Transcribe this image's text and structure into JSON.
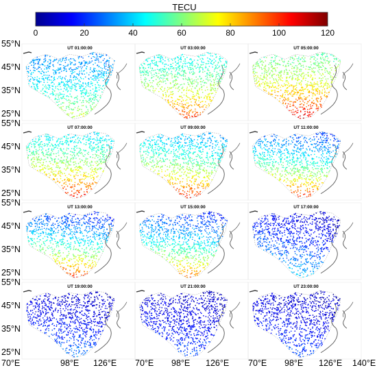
{
  "colorbar": {
    "title": "TECU",
    "min": 0,
    "max": 120,
    "ticks": [
      "0",
      "20",
      "40",
      "60",
      "80",
      "100",
      "120"
    ],
    "colormap": "jet",
    "stops": [
      "#00008f",
      "#0000ff",
      "#007fff",
      "#00ffff",
      "#7fff7f",
      "#ffff00",
      "#ff7f00",
      "#ff0000",
      "#7f0000"
    ]
  },
  "panels": [
    {
      "title": "UT 01:00:00",
      "south_tec": 75,
      "north_tec": 30,
      "west_boost": 0,
      "east_boost": 0
    },
    {
      "title": "UT 03:00:00",
      "south_tec": 105,
      "north_tec": 45,
      "west_boost": 0,
      "east_boost": 0
    },
    {
      "title": "UT 05:00:00",
      "south_tec": 115,
      "north_tec": 55,
      "west_boost": 0,
      "east_boost": 0
    },
    {
      "title": "UT 07:00:00",
      "south_tec": 115,
      "north_tec": 45,
      "west_boost": 0,
      "east_boost": -5
    },
    {
      "title": "UT 09:00:00",
      "south_tec": 115,
      "north_tec": 40,
      "west_boost": 0,
      "east_boost": -10
    },
    {
      "title": "UT 11:00:00",
      "south_tec": 115,
      "north_tec": 30,
      "west_boost": 0,
      "east_boost": -10
    },
    {
      "title": "UT 13:00:00",
      "south_tec": 110,
      "north_tec": 20,
      "west_boost": 5,
      "east_boost": -5
    },
    {
      "title": "UT 15:00:00",
      "south_tec": 100,
      "north_tec": 20,
      "west_boost": 5,
      "east_boost": -5
    },
    {
      "title": "UT 17:00:00",
      "south_tec": 45,
      "north_tec": 12,
      "west_boost": 5,
      "east_boost": -8
    },
    {
      "title": "UT 19:00:00",
      "south_tec": 35,
      "north_tec": 10,
      "west_boost": 0,
      "east_boost": -5
    },
    {
      "title": "UT 21:00:00",
      "south_tec": 30,
      "north_tec": 10,
      "west_boost": 0,
      "east_boost": -5
    },
    {
      "title": "UT 23:00:00",
      "south_tec": 30,
      "north_tec": 10,
      "west_boost": 0,
      "east_boost": -5
    }
  ],
  "y_axis_labels": [
    "55°N",
    "45°N",
    "35°N",
    "25°N"
  ],
  "x_axis_labels": [
    "70°E",
    "98°E",
    "126°E",
    "70°E",
    "98°E",
    "126°E",
    "70°E",
    "98°E",
    "126°E",
    "140°E"
  ]
}
